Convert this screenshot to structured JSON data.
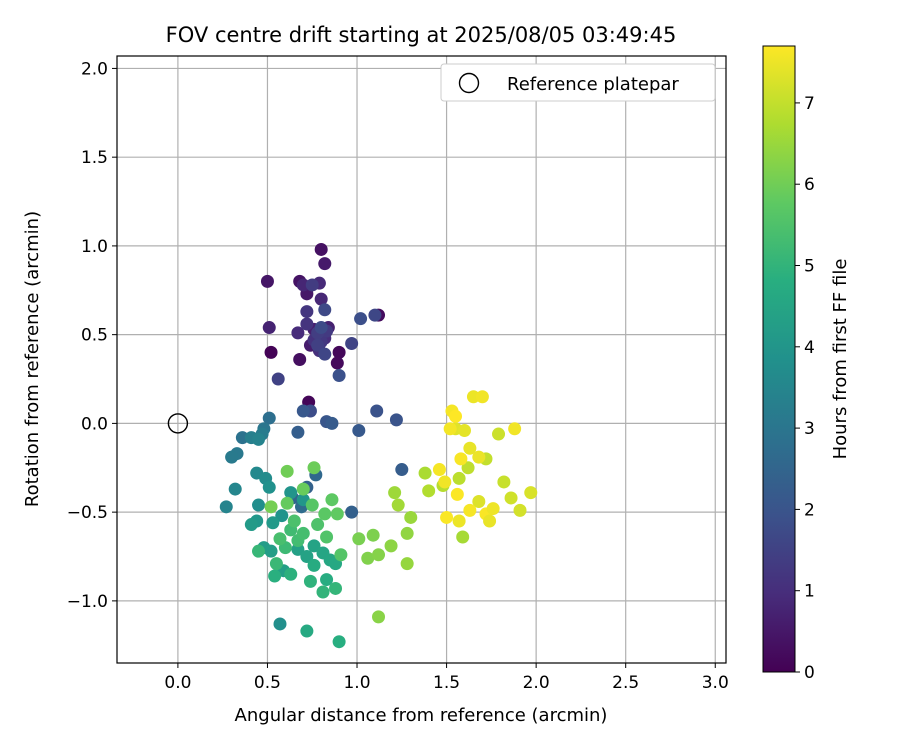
{
  "chart_data": {
    "type": "scatter",
    "title": "FOV centre drift starting at 2025/08/05 03:49:45",
    "xlabel": "Angular distance from reference (arcmin)",
    "ylabel": "Rotation from reference (arcmin)",
    "xlim": [
      -0.34,
      3.06
    ],
    "ylim": [
      -1.35,
      2.07
    ],
    "x_ticks": [
      0.0,
      0.5,
      1.0,
      1.5,
      2.0,
      2.5,
      3.0
    ],
    "x_tick_labels": [
      "0.0",
      "0.5",
      "1.0",
      "1.5",
      "2.0",
      "2.5",
      "3.0"
    ],
    "y_ticks": [
      -1.0,
      -0.5,
      0.0,
      0.5,
      1.0,
      1.5,
      2.0
    ],
    "y_tick_labels": [
      "−1.0",
      "−0.5",
      "0.0",
      "0.5",
      "1.0",
      "1.5",
      "2.0"
    ],
    "grid": true,
    "legend": {
      "position": "top-right",
      "entries": [
        "Reference platepar"
      ]
    },
    "reference_point": {
      "x": 0.0,
      "y": 0.0
    },
    "colorbar": {
      "label": "Hours from first FF file",
      "colormap": "viridis",
      "range": [
        0,
        7.7
      ],
      "ticks": [
        0,
        1,
        2,
        3,
        4,
        5,
        6,
        7
      ],
      "tick_labels": [
        "0",
        "1",
        "2",
        "3",
        "4",
        "5",
        "6",
        "7"
      ]
    },
    "points": [
      {
        "x": 0.52,
        "y": 0.4,
        "c": 0.05
      },
      {
        "x": 0.73,
        "y": 0.12,
        "c": 0.1
      },
      {
        "x": 0.9,
        "y": 0.4,
        "c": 0.15
      },
      {
        "x": 0.89,
        "y": 0.34,
        "c": 0.2
      },
      {
        "x": 1.12,
        "y": 0.61,
        "c": 0.25
      },
      {
        "x": 0.68,
        "y": 0.36,
        "c": 0.3
      },
      {
        "x": 0.8,
        "y": 0.98,
        "c": 0.35
      },
      {
        "x": 0.68,
        "y": 0.8,
        "c": 0.4
      },
      {
        "x": 0.5,
        "y": 0.8,
        "c": 0.45
      },
      {
        "x": 0.72,
        "y": 0.73,
        "c": 0.5
      },
      {
        "x": 0.82,
        "y": 0.9,
        "c": 0.55
      },
      {
        "x": 0.74,
        "y": 0.44,
        "c": 0.6
      },
      {
        "x": 0.76,
        "y": 0.53,
        "c": 0.65
      },
      {
        "x": 0.84,
        "y": 0.54,
        "c": 0.7
      },
      {
        "x": 0.51,
        "y": 0.54,
        "c": 0.75
      },
      {
        "x": 0.7,
        "y": 0.78,
        "c": 0.8
      },
      {
        "x": 0.8,
        "y": 0.7,
        "c": 0.85
      },
      {
        "x": 0.79,
        "y": 0.79,
        "c": 0.9
      },
      {
        "x": 0.67,
        "y": 0.51,
        "c": 0.95
      },
      {
        "x": 0.82,
        "y": 0.48,
        "c": 1.0
      },
      {
        "x": 0.79,
        "y": 0.41,
        "c": 1.05
      },
      {
        "x": 0.76,
        "y": 0.47,
        "c": 1.1
      },
      {
        "x": 0.72,
        "y": 0.56,
        "c": 1.15
      },
      {
        "x": 0.72,
        "y": 0.63,
        "c": 1.2
      },
      {
        "x": 0.8,
        "y": 0.46,
        "c": 1.25
      },
      {
        "x": 0.83,
        "y": 0.52,
        "c": 1.3
      },
      {
        "x": 0.75,
        "y": 0.78,
        "c": 1.35
      },
      {
        "x": 0.78,
        "y": 0.51,
        "c": 1.4
      },
      {
        "x": 0.78,
        "y": 0.44,
        "c": 1.45
      },
      {
        "x": 0.56,
        "y": 0.25,
        "c": 1.5
      },
      {
        "x": 0.97,
        "y": 0.45,
        "c": 1.55
      },
      {
        "x": 0.82,
        "y": 0.39,
        "c": 1.6
      },
      {
        "x": 1.1,
        "y": 0.61,
        "c": 1.65
      },
      {
        "x": 0.82,
        "y": 0.64,
        "c": 1.7
      },
      {
        "x": 0.8,
        "y": 0.54,
        "c": 1.75
      },
      {
        "x": 0.74,
        "y": 0.07,
        "c": 1.8
      },
      {
        "x": 1.02,
        "y": 0.59,
        "c": 1.85
      },
      {
        "x": 0.9,
        "y": 0.27,
        "c": 1.9
      },
      {
        "x": 1.11,
        "y": 0.07,
        "c": 1.95
      },
      {
        "x": 1.22,
        "y": 0.02,
        "c": 2.0
      },
      {
        "x": 0.83,
        "y": 0.01,
        "c": 2.05
      },
      {
        "x": 0.7,
        "y": 0.07,
        "c": 2.1
      },
      {
        "x": 1.01,
        "y": -0.04,
        "c": 2.15
      },
      {
        "x": 0.86,
        "y": 0.0,
        "c": 2.2
      },
      {
        "x": 1.25,
        "y": -0.26,
        "c": 2.25
      },
      {
        "x": 0.67,
        "y": -0.05,
        "c": 2.3
      },
      {
        "x": 0.97,
        "y": -0.5,
        "c": 2.35
      },
      {
        "x": 0.72,
        "y": -0.36,
        "c": 2.4
      },
      {
        "x": 0.64,
        "y": -0.42,
        "c": 2.5
      },
      {
        "x": 0.77,
        "y": -0.29,
        "c": 2.6
      },
      {
        "x": 0.69,
        "y": -0.47,
        "c": 2.7
      },
      {
        "x": 0.51,
        "y": 0.03,
        "c": 2.8
      },
      {
        "x": 0.36,
        "y": -0.08,
        "c": 2.9
      },
      {
        "x": 0.48,
        "y": -0.03,
        "c": 3.0
      },
      {
        "x": 0.33,
        "y": -0.17,
        "c": 3.1
      },
      {
        "x": 0.3,
        "y": -0.19,
        "c": 3.15
      },
      {
        "x": 0.47,
        "y": -0.06,
        "c": 3.2
      },
      {
        "x": 0.41,
        "y": -0.08,
        "c": 3.3
      },
      {
        "x": 0.45,
        "y": -0.09,
        "c": 3.4
      },
      {
        "x": 0.27,
        "y": -0.47,
        "c": 3.45
      },
      {
        "x": 0.32,
        "y": -0.37,
        "c": 3.5
      },
      {
        "x": 0.44,
        "y": -0.28,
        "c": 3.6
      },
      {
        "x": 0.49,
        "y": -0.31,
        "c": 3.7
      },
      {
        "x": 0.45,
        "y": -0.46,
        "c": 3.75
      },
      {
        "x": 0.57,
        "y": -1.13,
        "c": 3.8
      },
      {
        "x": 0.51,
        "y": -0.36,
        "c": 3.85
      },
      {
        "x": 0.58,
        "y": -0.52,
        "c": 3.9
      },
      {
        "x": 0.63,
        "y": -0.39,
        "c": 3.95
      },
      {
        "x": 0.7,
        "y": -0.43,
        "c": 4.0
      },
      {
        "x": 0.44,
        "y": -0.55,
        "c": 4.05
      },
      {
        "x": 0.53,
        "y": -0.56,
        "c": 4.1
      },
      {
        "x": 0.41,
        "y": -0.57,
        "c": 4.15
      },
      {
        "x": 0.48,
        "y": -0.7,
        "c": 4.2
      },
      {
        "x": 0.52,
        "y": -0.72,
        "c": 4.25
      },
      {
        "x": 0.59,
        "y": -0.83,
        "c": 4.3
      },
      {
        "x": 0.67,
        "y": -0.71,
        "c": 4.35
      },
      {
        "x": 0.72,
        "y": -0.75,
        "c": 4.4
      },
      {
        "x": 0.76,
        "y": -0.69,
        "c": 4.45
      },
      {
        "x": 0.81,
        "y": -0.73,
        "c": 4.5
      },
      {
        "x": 0.85,
        "y": -0.77,
        "c": 4.55
      },
      {
        "x": 0.88,
        "y": -0.79,
        "c": 4.6
      },
      {
        "x": 0.72,
        "y": -1.17,
        "c": 4.65
      },
      {
        "x": 0.76,
        "y": -0.8,
        "c": 4.7
      },
      {
        "x": 0.83,
        "y": -0.88,
        "c": 4.75
      },
      {
        "x": 0.9,
        "y": -1.23,
        "c": 4.8
      },
      {
        "x": 0.54,
        "y": -0.86,
        "c": 4.85
      },
      {
        "x": 0.63,
        "y": -0.85,
        "c": 4.9
      },
      {
        "x": 0.74,
        "y": -0.89,
        "c": 4.95
      },
      {
        "x": 0.81,
        "y": -0.95,
        "c": 5.0
      },
      {
        "x": 0.88,
        "y": -0.93,
        "c": 5.05
      },
      {
        "x": 0.45,
        "y": -0.72,
        "c": 5.1
      },
      {
        "x": 0.55,
        "y": -0.79,
        "c": 5.15
      },
      {
        "x": 0.6,
        "y": -0.7,
        "c": 5.2
      },
      {
        "x": 0.63,
        "y": -0.6,
        "c": 5.25
      },
      {
        "x": 0.67,
        "y": -0.66,
        "c": 5.3
      },
      {
        "x": 0.7,
        "y": -0.62,
        "c": 5.35
      },
      {
        "x": 0.57,
        "y": -0.65,
        "c": 5.4
      },
      {
        "x": 0.65,
        "y": -0.55,
        "c": 5.45
      },
      {
        "x": 0.78,
        "y": -0.57,
        "c": 5.5
      },
      {
        "x": 0.83,
        "y": -0.64,
        "c": 5.55
      },
      {
        "x": 0.91,
        "y": -0.74,
        "c": 5.6
      },
      {
        "x": 0.75,
        "y": -0.46,
        "c": 5.65
      },
      {
        "x": 0.82,
        "y": -0.51,
        "c": 5.7
      },
      {
        "x": 0.86,
        "y": -0.43,
        "c": 5.75
      },
      {
        "x": 0.89,
        "y": -0.51,
        "c": 5.8
      },
      {
        "x": 0.61,
        "y": -0.45,
        "c": 5.85
      },
      {
        "x": 0.7,
        "y": -0.37,
        "c": 5.9
      },
      {
        "x": 0.76,
        "y": -0.25,
        "c": 5.95
      },
      {
        "x": 0.61,
        "y": -0.27,
        "c": 6.0
      },
      {
        "x": 0.52,
        "y": -0.47,
        "c": 6.05
      },
      {
        "x": 1.01,
        "y": -0.65,
        "c": 6.1
      },
      {
        "x": 1.09,
        "y": -0.63,
        "c": 6.15
      },
      {
        "x": 1.06,
        "y": -0.76,
        "c": 6.2
      },
      {
        "x": 1.12,
        "y": -0.74,
        "c": 6.25
      },
      {
        "x": 1.12,
        "y": -1.09,
        "c": 6.3
      },
      {
        "x": 1.19,
        "y": -0.69,
        "c": 6.35
      },
      {
        "x": 1.28,
        "y": -0.62,
        "c": 6.4
      },
      {
        "x": 1.28,
        "y": -0.79,
        "c": 6.45
      },
      {
        "x": 1.3,
        "y": -0.53,
        "c": 6.5
      },
      {
        "x": 1.21,
        "y": -0.39,
        "c": 6.55
      },
      {
        "x": 1.23,
        "y": -0.46,
        "c": 6.6
      },
      {
        "x": 1.59,
        "y": -0.64,
        "c": 6.65
      },
      {
        "x": 1.38,
        "y": -0.28,
        "c": 6.7
      },
      {
        "x": 1.4,
        "y": -0.38,
        "c": 6.8
      },
      {
        "x": 1.48,
        "y": -0.35,
        "c": 6.85
      },
      {
        "x": 1.57,
        "y": -0.31,
        "c": 6.9
      },
      {
        "x": 1.62,
        "y": -0.25,
        "c": 6.95
      },
      {
        "x": 1.72,
        "y": -0.2,
        "c": 7.0
      },
      {
        "x": 1.82,
        "y": -0.33,
        "c": 7.05
      },
      {
        "x": 1.79,
        "y": -0.06,
        "c": 7.1
      },
      {
        "x": 1.86,
        "y": -0.42,
        "c": 7.15
      },
      {
        "x": 1.91,
        "y": -0.49,
        "c": 7.2
      },
      {
        "x": 1.97,
        "y": -0.39,
        "c": 7.25
      },
      {
        "x": 1.68,
        "y": -0.44,
        "c": 7.3
      },
      {
        "x": 1.55,
        "y": -0.03,
        "c": 7.35
      },
      {
        "x": 1.6,
        "y": -0.04,
        "c": 7.4
      },
      {
        "x": 1.63,
        "y": -0.14,
        "c": 7.45
      },
      {
        "x": 1.65,
        "y": 0.15,
        "c": 7.5
      },
      {
        "x": 1.7,
        "y": 0.15,
        "c": 7.55
      },
      {
        "x": 1.53,
        "y": 0.07,
        "c": 7.6
      },
      {
        "x": 1.72,
        "y": -0.51,
        "c": 7.65
      },
      {
        "x": 1.55,
        "y": 0.04,
        "c": 7.7
      },
      {
        "x": 1.56,
        "y": -0.4,
        "c": 7.68
      },
      {
        "x": 1.5,
        "y": -0.53,
        "c": 7.66
      },
      {
        "x": 1.58,
        "y": -0.2,
        "c": 7.64
      },
      {
        "x": 1.63,
        "y": -0.49,
        "c": 7.62
      },
      {
        "x": 1.46,
        "y": -0.26,
        "c": 7.6
      },
      {
        "x": 1.52,
        "y": -0.03,
        "c": 7.58
      },
      {
        "x": 1.88,
        "y": -0.03,
        "c": 7.56
      },
      {
        "x": 1.49,
        "y": -0.33,
        "c": 7.54
      },
      {
        "x": 1.76,
        "y": -0.48,
        "c": 7.52
      },
      {
        "x": 1.57,
        "y": -0.55,
        "c": 7.5
      },
      {
        "x": 1.68,
        "y": -0.19,
        "c": 7.48
      },
      {
        "x": 1.74,
        "y": -0.55,
        "c": 7.46
      }
    ]
  }
}
